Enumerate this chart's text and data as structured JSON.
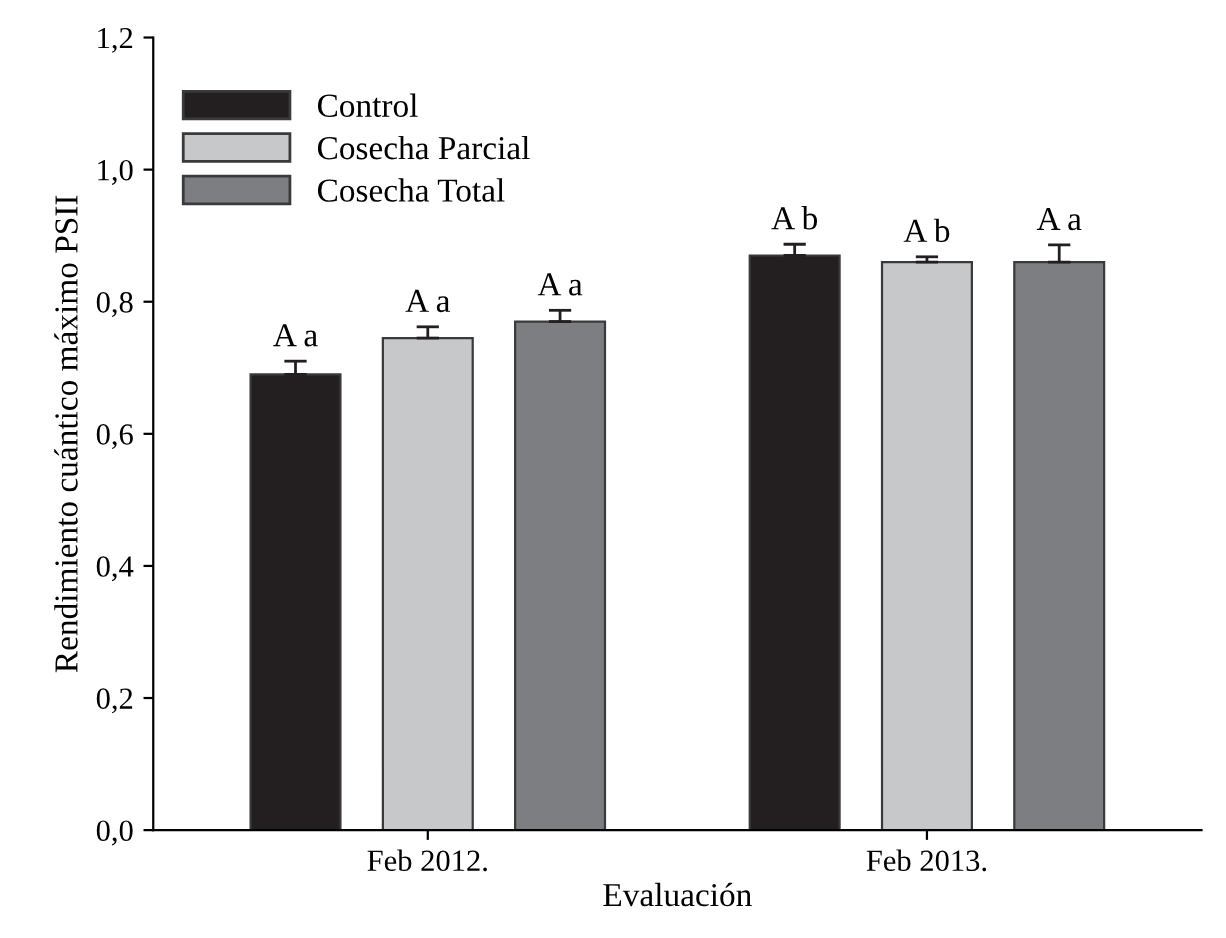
{
  "chart_data": {
    "type": "bar",
    "xlabel": "Evaluación",
    "ylabel": "Rendimiento cuántico máximo PSII",
    "categories": [
      "Feb 2012.",
      "Feb 2013."
    ],
    "series": [
      {
        "name": "Control",
        "color": "#231f20",
        "values": [
          0.69,
          0.87
        ],
        "errors": [
          0.02,
          0.017
        ],
        "value_labels": [
          "A a",
          "A b"
        ]
      },
      {
        "name": "Cosecha Parcial",
        "color": "#c7c8ca",
        "values": [
          0.745,
          0.86
        ],
        "errors": [
          0.017,
          0.008
        ],
        "value_labels": [
          "A a",
          "A b"
        ]
      },
      {
        "name": "Cosecha Total",
        "color": "#7d7e82",
        "values": [
          0.77,
          0.86
        ],
        "errors": [
          0.017,
          0.026
        ],
        "value_labels": [
          "A a",
          "A a"
        ]
      }
    ],
    "ylim": [
      0,
      1.2
    ],
    "yticks": [
      {
        "value": 0,
        "label": "0,0"
      },
      {
        "value": 0.2,
        "label": "0,2"
      },
      {
        "value": 0.4,
        "label": "0,4"
      },
      {
        "value": 0.6,
        "label": "0,6"
      },
      {
        "value": 0.8,
        "label": "0,8"
      },
      {
        "value": 1.0,
        "label": "1,0"
      },
      {
        "value": 1.2,
        "label": "1,2"
      }
    ],
    "legend": "top left",
    "grid": false
  }
}
